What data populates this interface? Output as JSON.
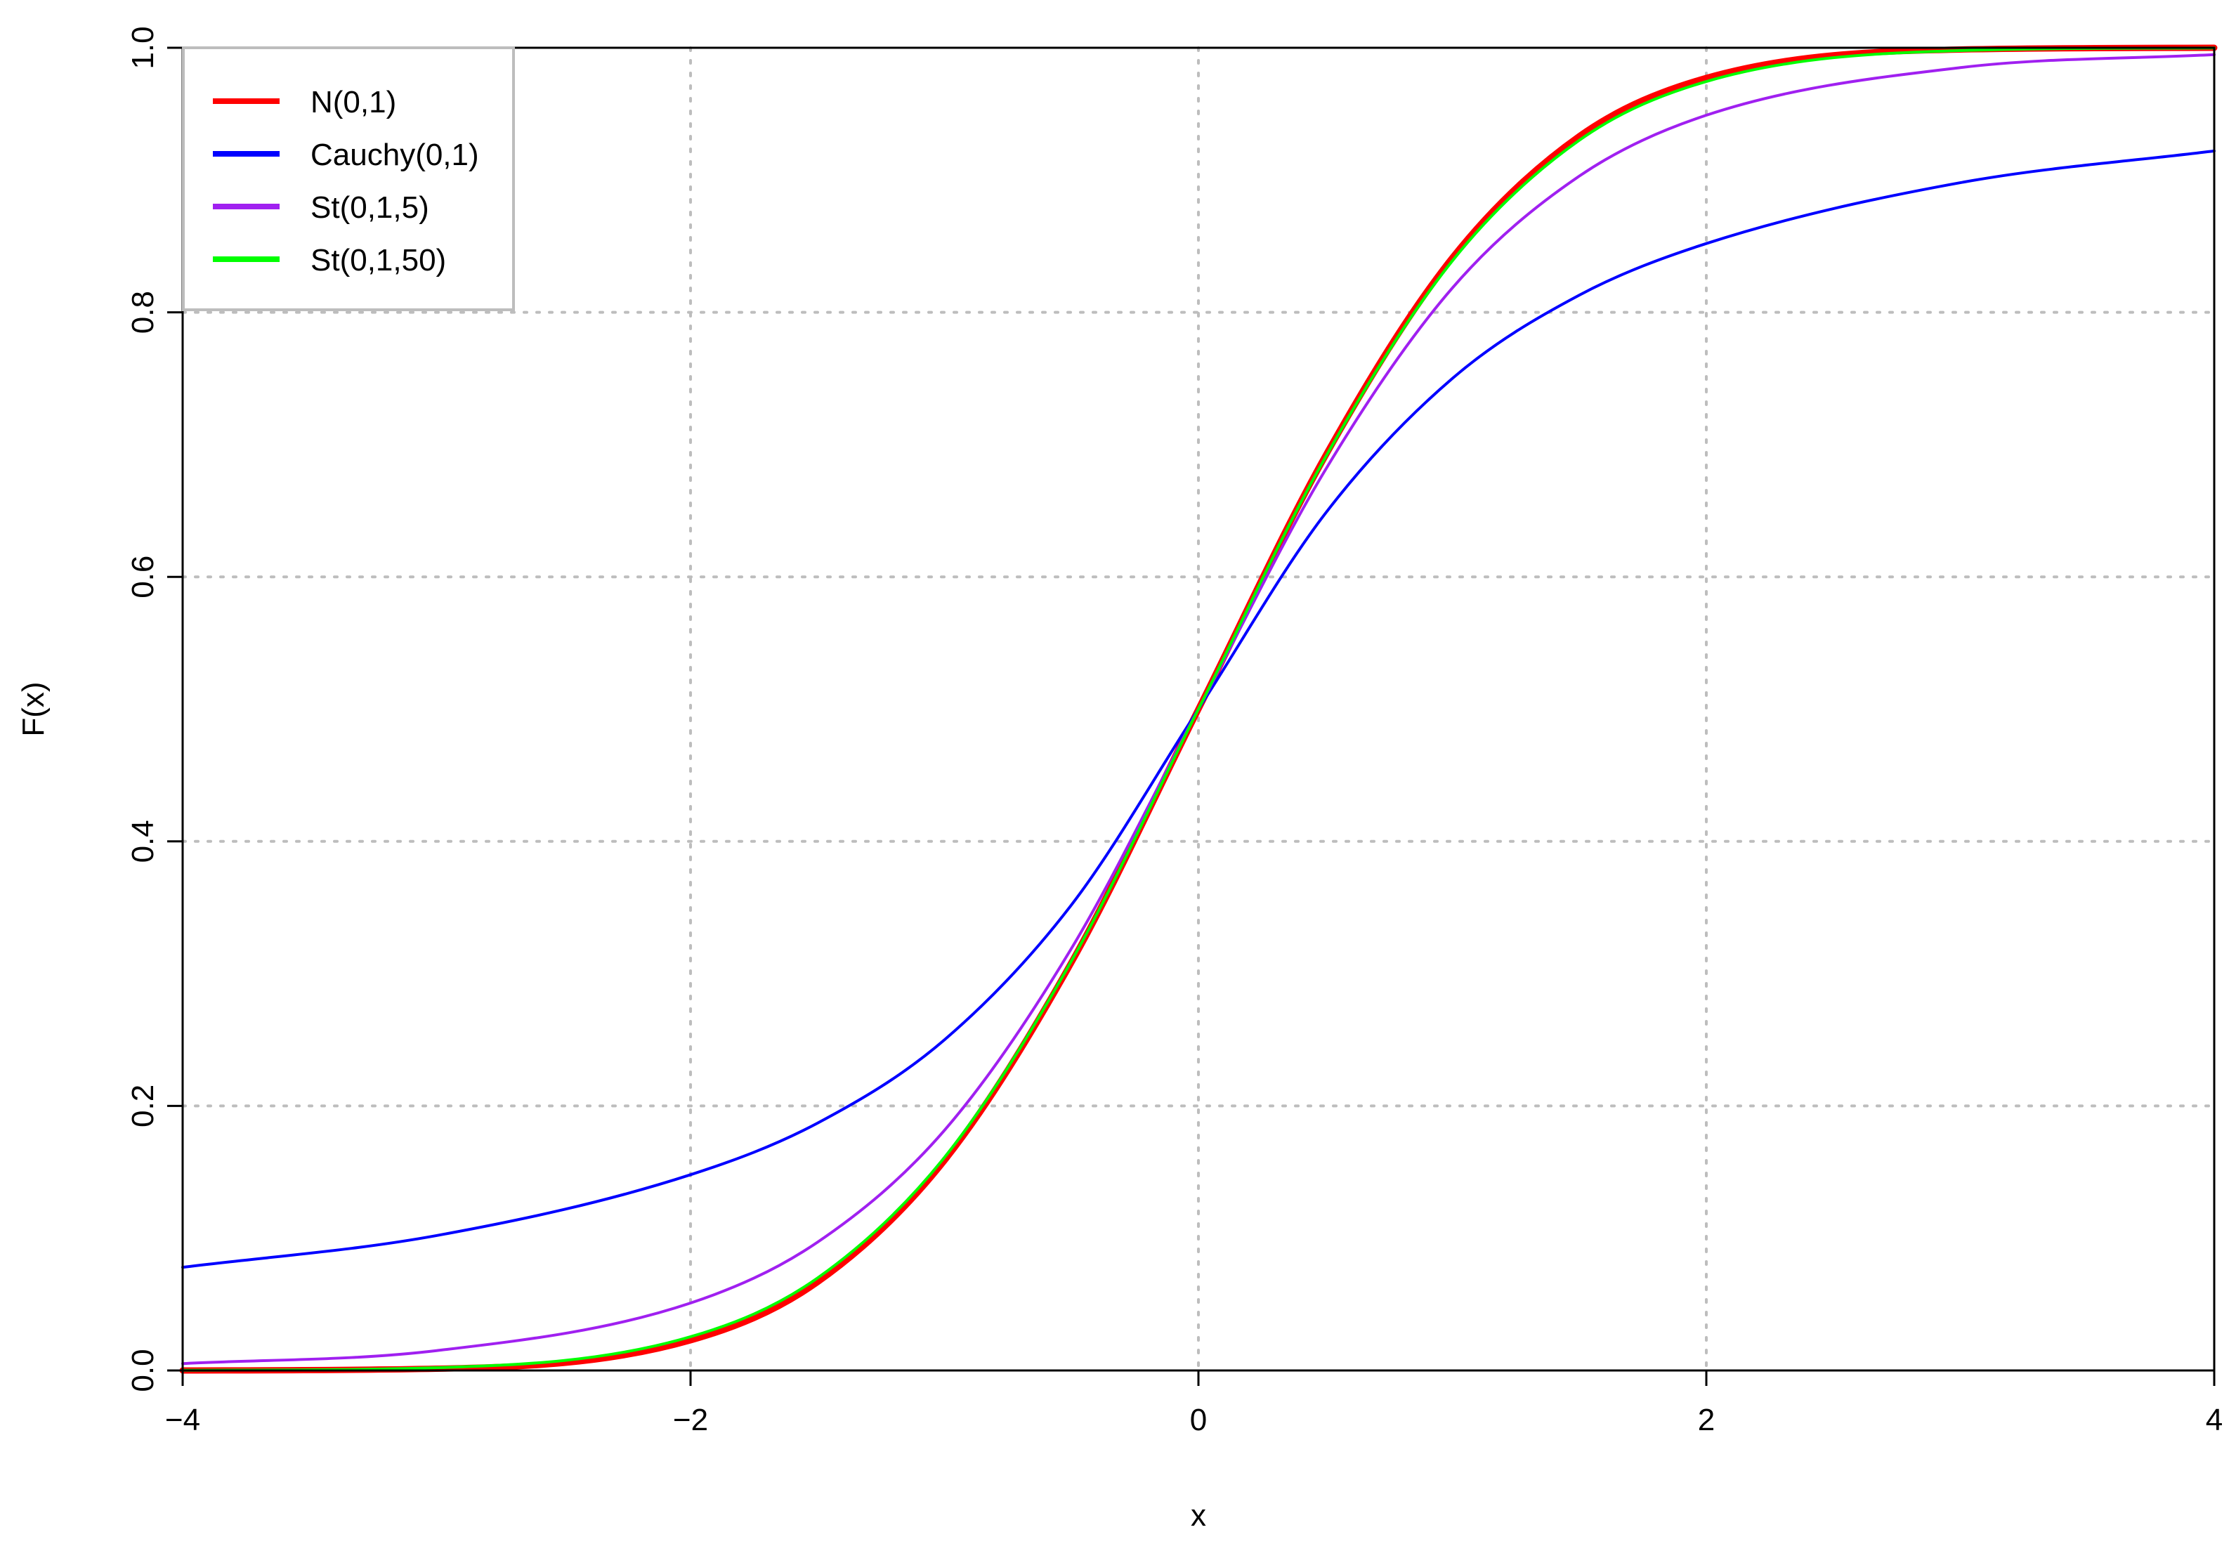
{
  "chart_data": {
    "type": "line",
    "title": "",
    "xlabel": "x",
    "ylabel": "F(x)",
    "xlim": [
      -4,
      4
    ],
    "ylim": [
      0,
      1
    ],
    "x_ticks": [
      "−4",
      "−2",
      "0",
      "2",
      "4"
    ],
    "y_ticks": [
      "0.0",
      "0.2",
      "0.4",
      "0.6",
      "0.8",
      "1.0"
    ],
    "grid": true,
    "legend_position": "top-left",
    "x": [
      -4,
      -3,
      -2,
      -1.5,
      -1,
      -0.5,
      0,
      0.5,
      1,
      1.5,
      2,
      3,
      4
    ],
    "series": [
      {
        "name": "N(0,1)",
        "color": "#ff0000",
        "values": [
          3e-05,
          0.0013,
          0.0228,
          0.0668,
          0.1587,
          0.3085,
          0.5,
          0.6915,
          0.8413,
          0.9332,
          0.9772,
          0.9987,
          0.99997
        ]
      },
      {
        "name": "Cauchy(0,1)",
        "color": "#0000ff",
        "values": [
          0.078,
          0.102,
          0.148,
          0.187,
          0.25,
          0.352,
          0.5,
          0.648,
          0.75,
          0.813,
          0.852,
          0.898,
          0.922
        ]
      },
      {
        "name": "St(0,1,5)",
        "color": "#a020f0",
        "values": [
          0.0052,
          0.015,
          0.051,
          0.097,
          0.1816,
          0.3191,
          0.5,
          0.6809,
          0.8184,
          0.903,
          0.949,
          0.985,
          0.9948
        ]
      },
      {
        "name": "St(0,1,50)",
        "color": "#00ff00",
        "values": [
          0.0001,
          0.0021,
          0.0255,
          0.0699,
          0.1611,
          0.3096,
          0.5,
          0.6904,
          0.8389,
          0.9301,
          0.9745,
          0.9979,
          0.9999
        ]
      }
    ]
  }
}
